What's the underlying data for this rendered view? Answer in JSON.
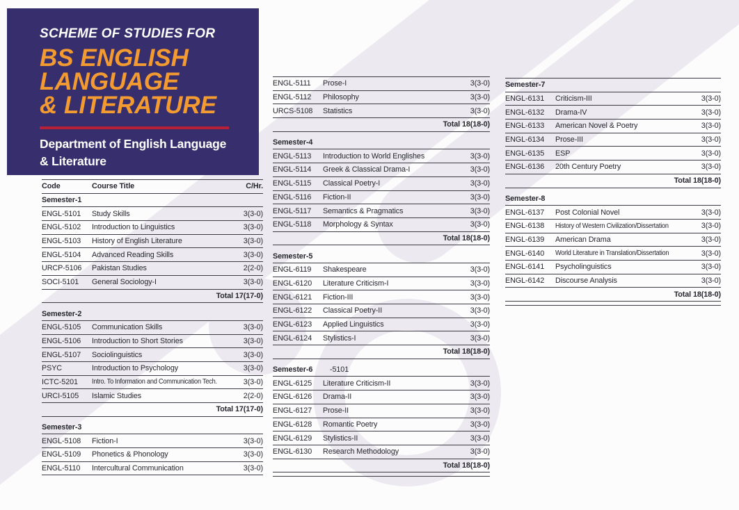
{
  "colors": {
    "header_bg": "#372e6d",
    "accent_orange": "#f39b31",
    "accent_red": "#b62138",
    "text": "#26262e",
    "table_line": "#3a3944",
    "watermark": "#eceaf0",
    "page_bg": "#fcfcfd"
  },
  "header": {
    "kicker": "SCHEME OF STUDIES FOR",
    "title_lines": [
      "BS ENGLISH",
      "LANGUAGE",
      "& LITERATURE"
    ],
    "department_lines": [
      "Department of English Language",
      "& Literature"
    ]
  },
  "table_header": {
    "code": "Code",
    "title": "Course Title",
    "credit": "C/Hr."
  },
  "columns": [
    {
      "show_header": true,
      "end_rule": false,
      "sections": [
        {
          "semester": "Semester-1",
          "courses": [
            {
              "code": "ENGL-5101",
              "title": "Study Skills",
              "credit": "3(3-0)"
            },
            {
              "code": "ENGL-5102",
              "title": "Introduction to Linguistics",
              "credit": "3(3-0)"
            },
            {
              "code": "ENGL-5103",
              "title": "History of English Literature",
              "credit": "3(3-0)"
            },
            {
              "code": "ENGL-5104",
              "title": "Advanced Reading Skills",
              "credit": "3(3-0)"
            },
            {
              "code": "URCP-5106",
              "title": "Pakistan Studies",
              "credit": "2(2-0)"
            },
            {
              "code": "SOCI-5101",
              "title": "General Sociology-I",
              "credit": "3(3-0)"
            }
          ],
          "total": "Total 17(17-0)"
        },
        {
          "semester": "Semester-2",
          "courses": [
            {
              "code": "ENGL-5105",
              "title": "Communication Skills",
              "credit": "3(3-0)"
            },
            {
              "code": "ENGL-5106",
              "title": "Introduction to Short Stories",
              "credit": "3(3-0)"
            },
            {
              "code": "ENGL-5107",
              "title": "Sociolinguistics",
              "credit": "3(3-0)"
            },
            {
              "code": "PSYC",
              "title": "Introduction to Psychology",
              "credit": "3(3-0)"
            },
            {
              "code": "ICTC-5201",
              "title": "Intro. To Information and Communication Tech.",
              "credit": "3(3-0)"
            },
            {
              "code": "URCI-5105",
              "title": "Islamic Studies",
              "credit": "2(2-0)"
            }
          ],
          "total": "Total 17(17-0)"
        },
        {
          "semester": "Semester-3",
          "courses": [
            {
              "code": "ENGL-5108",
              "title": "Fiction-I",
              "credit": "3(3-0)"
            },
            {
              "code": "ENGL-5109",
              "title": "Phonetics & Phonology",
              "credit": "3(3-0)"
            },
            {
              "code": "ENGL-5110",
              "title": "Intercultural Communication",
              "credit": "3(3-0)"
            }
          ],
          "total": null
        }
      ]
    },
    {
      "show_header": false,
      "end_rule": true,
      "sections": [
        {
          "semester": null,
          "courses": [
            {
              "code": "ENGL-5111",
              "title": "Prose-I",
              "credit": "3(3-0)"
            },
            {
              "code": "ENGL-5112",
              "title": "Philosophy",
              "credit": "3(3-0)"
            },
            {
              "code": "URCS-5108",
              "title": "Statistics",
              "credit": "3(3-0)"
            }
          ],
          "total": "Total 18(18-0)"
        },
        {
          "semester": "Semester-4",
          "courses": [
            {
              "code": "ENGL-5113",
              "title": "Introduction to World Englishes",
              "credit": "3(3-0)"
            },
            {
              "code": "ENGL-5114",
              "title": "Greek & Classical Drama-I",
              "credit": "3(3-0)"
            },
            {
              "code": "ENGL-5115",
              "title": "Classical Poetry-I",
              "credit": "3(3-0)"
            },
            {
              "code": "ENGL-5116",
              "title": "Fiction-II",
              "credit": "3(3-0)"
            },
            {
              "code": "ENGL-5117",
              "title": "Semantics & Pragmatics",
              "credit": "3(3-0)"
            },
            {
              "code": "ENGL-5118",
              "title": "Morphology & Syntax",
              "credit": "3(3-0)"
            }
          ],
          "total": "Total 18(18-0)"
        },
        {
          "semester": "Semester-5",
          "courses": [
            {
              "code": "ENGL-6119",
              "title": "Shakespeare",
              "credit": "3(3-0)"
            },
            {
              "code": "ENGL-6120",
              "title": "Literature Criticism-I",
              "credit": "3(3-0)"
            },
            {
              "code": "ENGL-6121",
              "title": "Fiction-III",
              "credit": "3(3-0)"
            },
            {
              "code": "ENGL-6122",
              "title": "Classical Poetry-II",
              "credit": "3(3-0)"
            },
            {
              "code": "ENGL-6123",
              "title": "Applied Linguistics",
              "credit": "3(3-0)"
            },
            {
              "code": "ENGL-6124",
              "title": "Stylistics-I",
              "credit": "3(3-0)"
            }
          ],
          "total": "Total 18(18-0)"
        },
        {
          "semester": "Semester-6",
          "semester_extra": "-5101",
          "courses": [
            {
              "code": "ENGL-6125",
              "title": "Literature Criticism-II",
              "credit": "3(3-0)"
            },
            {
              "code": "ENGL-6126",
              "title": "Drama-II",
              "credit": "3(3-0)"
            },
            {
              "code": "ENGL-6127",
              "title": "Prose-II",
              "credit": "3(3-0)"
            },
            {
              "code": "ENGL-6128",
              "title": "Romantic Poetry",
              "credit": "3(3-0)"
            },
            {
              "code": "ENGL-6129",
              "title": "Stylistics-II",
              "credit": "3(3-0)"
            },
            {
              "code": "ENGL-6130",
              "title": "Research Methodology",
              "credit": "3(3-0)"
            }
          ],
          "total": "Total 18(18-0)"
        }
      ]
    },
    {
      "show_header": false,
      "end_rule": true,
      "sections": [
        {
          "semester": "Semester-7",
          "courses": [
            {
              "code": "ENGL-6131",
              "title": "Criticism-III",
              "credit": "3(3-0)"
            },
            {
              "code": "ENGL-6132",
              "title": "Drama-IV",
              "credit": "3(3-0)"
            },
            {
              "code": "ENGL-6133",
              "title": "American Novel & Poetry",
              "credit": "3(3-0)"
            },
            {
              "code": "ENGL-6134",
              "title": "Prose-III",
              "credit": "3(3-0)"
            },
            {
              "code": "ENGL-6135",
              "title": "ESP",
              "credit": "3(3-0)"
            },
            {
              "code": "ENGL-6136",
              "title": "20th Century Poetry",
              "credit": "3(3-0)"
            }
          ],
          "total": "Total 18(18-0)"
        },
        {
          "semester": "Semester-8",
          "courses": [
            {
              "code": "ENGL-6137",
              "title": "Post Colonial Novel",
              "credit": "3(3-0)"
            },
            {
              "code": "ENGL-6138",
              "title": "History of Western Civilization/Dissertation",
              "credit": "3(3-0)"
            },
            {
              "code": "ENGL-6139",
              "title": "American Drama",
              "credit": "3(3-0)"
            },
            {
              "code": "ENGL-6140",
              "title": "World Literature in Translation/Dissertation",
              "credit": "3(3-0)"
            },
            {
              "code": "ENGL-6141",
              "title": "Psycholinguistics",
              "credit": "3(3-0)"
            },
            {
              "code": "ENGL-6142",
              "title": "Discourse Analysis",
              "credit": "3(3-0)"
            }
          ],
          "total": "Total 18(18-0)"
        }
      ]
    }
  ]
}
